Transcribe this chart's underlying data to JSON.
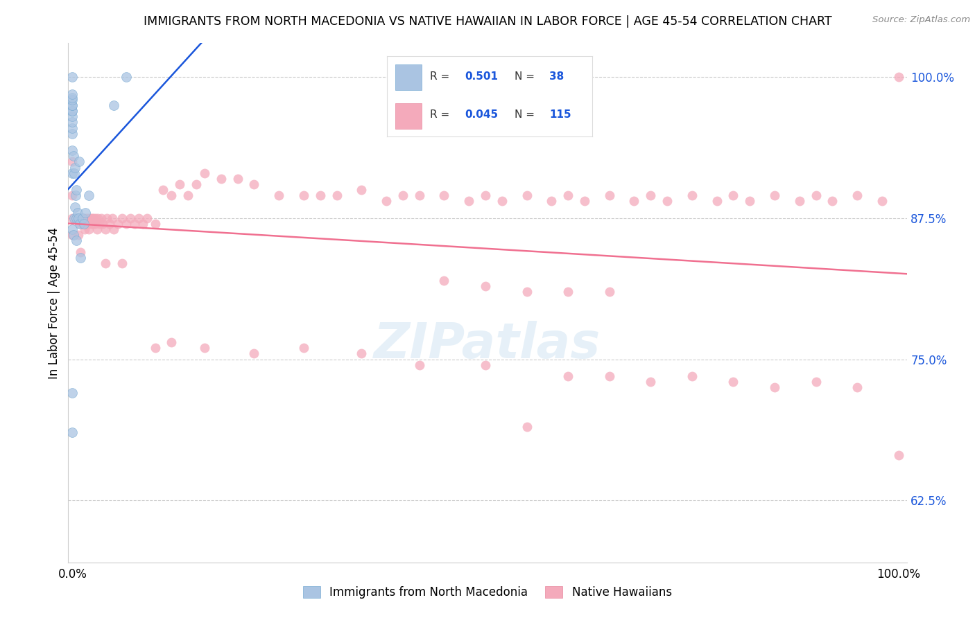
{
  "title": "IMMIGRANTS FROM NORTH MACEDONIA VS NATIVE HAWAIIAN IN LABOR FORCE | AGE 45-54 CORRELATION CHART",
  "source": "Source: ZipAtlas.com",
  "ylabel": "In Labor Force | Age 45-54",
  "legend_x_labels": [
    "Immigrants from North Macedonia",
    "Native Hawaiians"
  ],
  "R_blue": 0.501,
  "N_blue": 38,
  "R_pink": 0.045,
  "N_pink": 115,
  "blue_color": "#aac4e2",
  "blue_edge_color": "#7aacd4",
  "pink_color": "#f4aabb",
  "pink_edge_color": "#e88aa0",
  "blue_line_color": "#1a56db",
  "pink_line_color": "#f07090",
  "ytick_color": "#1a56db",
  "watermark": "ZIPatlas",
  "ylim": [
    0.57,
    1.03
  ],
  "xlim": [
    -0.005,
    1.01
  ],
  "yticks": [
    0.625,
    0.75,
    0.875,
    1.0
  ],
  "ytick_labels": [
    "62.5%",
    "75.0%",
    "87.5%",
    "100.0%"
  ],
  "xticks": [
    0.0,
    1.0
  ],
  "xtick_labels": [
    "0.0%",
    "100.0%"
  ],
  "blue_x": [
    0.0,
    0.0,
    0.0,
    0.0,
    0.0,
    0.0,
    0.0,
    0.0,
    0.0,
    0.0,
    0.0,
    0.0,
    0.0,
    0.0,
    0.0,
    0.0,
    0.0,
    0.001,
    0.001,
    0.002,
    0.002,
    0.003,
    0.003,
    0.004,
    0.005,
    0.005,
    0.005,
    0.006,
    0.007,
    0.008,
    0.009,
    0.01,
    0.012,
    0.014,
    0.016,
    0.02,
    0.05,
    0.065
  ],
  "blue_y": [
    0.685,
    0.72,
    0.865,
    0.915,
    0.935,
    0.95,
    0.955,
    0.96,
    0.965,
    0.97,
    0.97,
    0.975,
    0.975,
    0.98,
    0.982,
    0.985,
    1.0,
    0.86,
    0.93,
    0.875,
    0.915,
    0.885,
    0.92,
    0.895,
    0.855,
    0.875,
    0.9,
    0.88,
    0.875,
    0.925,
    0.87,
    0.84,
    0.875,
    0.87,
    0.88,
    0.895,
    0.975,
    1.0
  ],
  "pink_x": [
    0.0,
    0.0,
    0.0,
    0.0,
    0.005,
    0.007,
    0.008,
    0.009,
    0.01,
    0.011,
    0.012,
    0.013,
    0.014,
    0.015,
    0.016,
    0.017,
    0.018,
    0.019,
    0.02,
    0.021,
    0.022,
    0.023,
    0.024,
    0.025,
    0.026,
    0.027,
    0.028,
    0.03,
    0.031,
    0.033,
    0.035,
    0.037,
    0.04,
    0.042,
    0.045,
    0.048,
    0.05,
    0.055,
    0.06,
    0.065,
    0.07,
    0.075,
    0.08,
    0.085,
    0.09,
    0.1,
    0.11,
    0.12,
    0.13,
    0.14,
    0.15,
    0.16,
    0.18,
    0.2,
    0.22,
    0.25,
    0.28,
    0.3,
    0.32,
    0.35,
    0.38,
    0.4,
    0.42,
    0.45,
    0.48,
    0.5,
    0.52,
    0.55,
    0.58,
    0.6,
    0.62,
    0.65,
    0.68,
    0.7,
    0.72,
    0.75,
    0.78,
    0.8,
    0.82,
    0.85,
    0.88,
    0.9,
    0.92,
    0.95,
    0.98,
    1.0,
    0.04,
    0.06,
    0.1,
    0.12,
    0.16,
    0.22,
    0.28,
    0.35,
    0.42,
    0.5,
    0.55,
    0.6,
    0.65,
    0.7,
    0.75,
    0.8,
    0.85,
    0.9,
    0.95,
    1.0,
    0.45,
    0.5,
    0.55,
    0.6,
    0.65
  ],
  "pink_y": [
    0.86,
    0.875,
    0.895,
    0.925,
    0.875,
    0.86,
    0.875,
    0.87,
    0.845,
    0.875,
    0.87,
    0.875,
    0.87,
    0.865,
    0.875,
    0.87,
    0.875,
    0.87,
    0.865,
    0.875,
    0.875,
    0.87,
    0.875,
    0.87,
    0.875,
    0.87,
    0.875,
    0.865,
    0.875,
    0.87,
    0.875,
    0.87,
    0.865,
    0.875,
    0.87,
    0.875,
    0.865,
    0.87,
    0.875,
    0.87,
    0.875,
    0.87,
    0.875,
    0.87,
    0.875,
    0.87,
    0.9,
    0.895,
    0.905,
    0.895,
    0.905,
    0.915,
    0.91,
    0.91,
    0.905,
    0.895,
    0.895,
    0.895,
    0.895,
    0.9,
    0.89,
    0.895,
    0.895,
    0.895,
    0.89,
    0.895,
    0.89,
    0.895,
    0.89,
    0.895,
    0.89,
    0.895,
    0.89,
    0.895,
    0.89,
    0.895,
    0.89,
    0.895,
    0.89,
    0.895,
    0.89,
    0.895,
    0.89,
    0.895,
    0.89,
    1.0,
    0.835,
    0.835,
    0.76,
    0.765,
    0.76,
    0.755,
    0.76,
    0.755,
    0.745,
    0.745,
    0.69,
    0.735,
    0.735,
    0.73,
    0.735,
    0.73,
    0.725,
    0.73,
    0.725,
    0.665,
    0.82,
    0.815,
    0.81,
    0.81,
    0.81
  ],
  "scatter_size": 100,
  "scatter_alpha": 0.75
}
